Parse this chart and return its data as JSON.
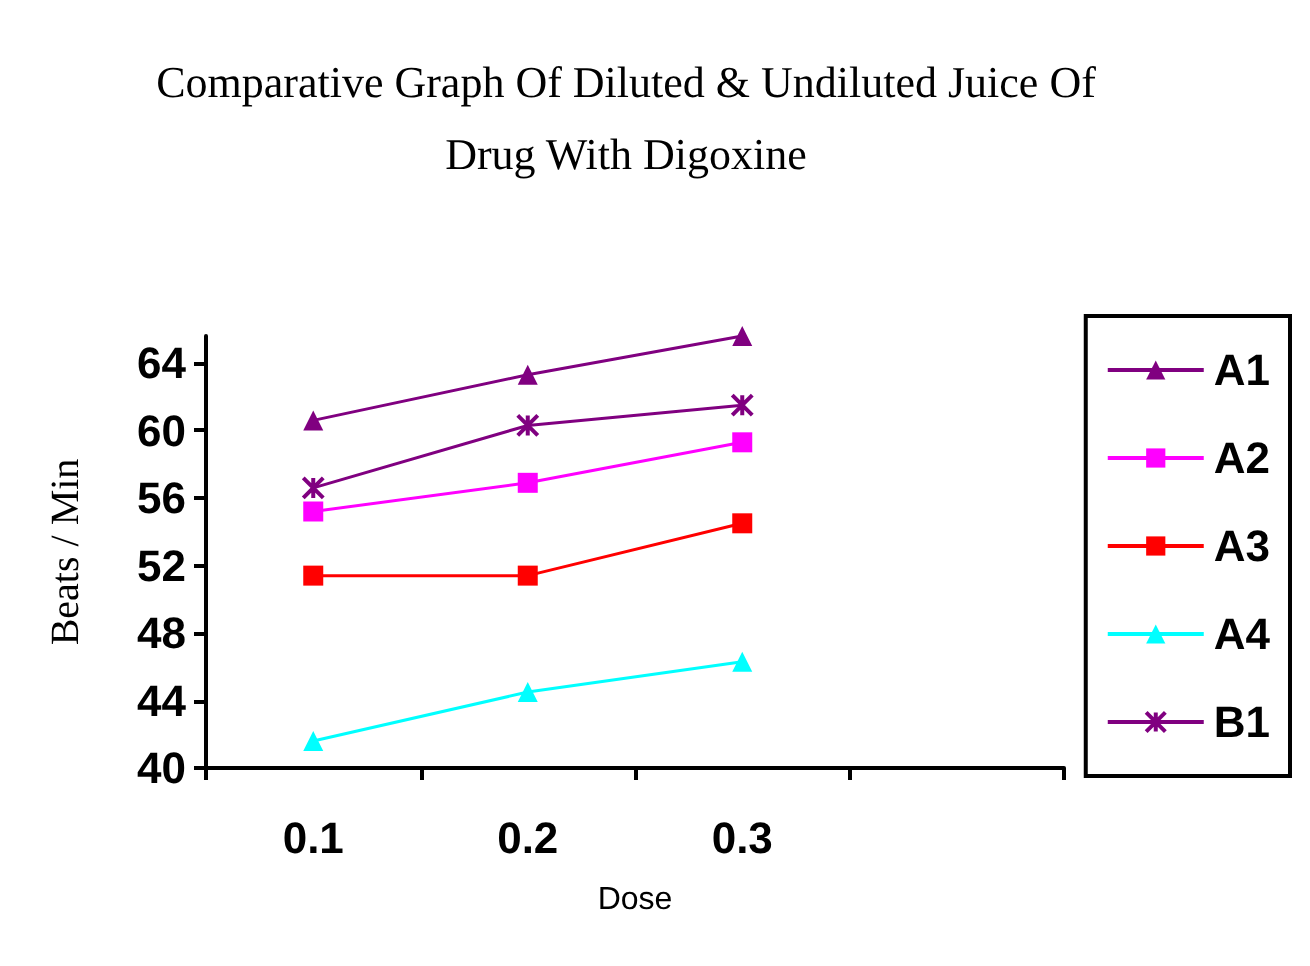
{
  "chart_data": {
    "type": "line",
    "title": "Comparative Graph Of Diluted & Undiluted Juice Of\nDrug With Digoxine",
    "xlabel": "Dose",
    "ylabel": "Beats / Min",
    "categories": [
      "0.1",
      "0.2",
      "0.3",
      null
    ],
    "series": [
      {
        "name": "A1",
        "color": "#800080",
        "marker": "triangle",
        "values": [
          60.6,
          63.3,
          65.6,
          null
        ]
      },
      {
        "name": "A2",
        "color": "#ff00ff",
        "marker": "square",
        "values": [
          55.2,
          56.9,
          59.3,
          null
        ]
      },
      {
        "name": "A3",
        "color": "#ff0000",
        "marker": "square",
        "values": [
          51.4,
          51.4,
          54.5,
          null
        ]
      },
      {
        "name": "A4",
        "color": "#00ffff",
        "marker": "triangle",
        "values": [
          41.6,
          44.5,
          46.3,
          null
        ]
      },
      {
        "name": "B1",
        "color": "#800080",
        "marker": "cross",
        "values": [
          56.6,
          60.3,
          61.5,
          null
        ]
      }
    ],
    "ylim": [
      40,
      65.6
    ],
    "yticks": [
      40,
      44,
      48,
      52,
      56,
      60,
      64
    ],
    "grid": false,
    "legend": "right",
    "line_style": "solid"
  }
}
